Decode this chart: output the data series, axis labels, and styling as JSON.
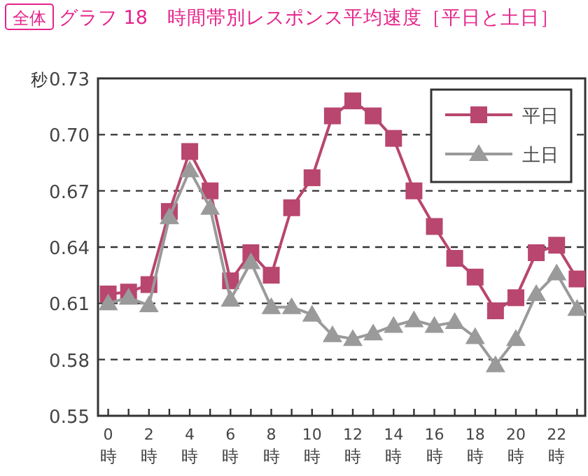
{
  "chart_data": {
    "type": "line",
    "title": "グラフ 18　時間帯別レスポンス平均速度［平日と土日］",
    "annotations": [
      "全体"
    ],
    "ylabel": "秒",
    "x": [
      0,
      1,
      2,
      3,
      4,
      5,
      6,
      7,
      8,
      9,
      10,
      11,
      12,
      13,
      14,
      15,
      16,
      17,
      18,
      19,
      20,
      21,
      22,
      23
    ],
    "series": [
      {
        "name": "平日",
        "color": "#b8466f",
        "marker": "square",
        "values": [
          0.615,
          0.616,
          0.62,
          0.659,
          0.691,
          0.67,
          0.622,
          0.637,
          0.625,
          0.661,
          0.677,
          0.71,
          0.718,
          0.71,
          0.698,
          0.67,
          0.651,
          0.634,
          0.624,
          0.606,
          0.613,
          0.637,
          0.641,
          0.623
        ]
      },
      {
        "name": "土日",
        "color": "#9a9a9a",
        "marker": "triangle",
        "values": [
          0.61,
          0.613,
          0.609,
          0.656,
          0.681,
          0.661,
          0.612,
          0.632,
          0.608,
          0.608,
          0.604,
          0.593,
          0.591,
          0.594,
          0.598,
          0.601,
          0.598,
          0.6,
          0.592,
          0.577,
          0.591,
          0.615,
          0.626,
          0.607
        ]
      }
    ],
    "xlim": [
      -0.5,
      23.4
    ],
    "ylim": [
      0.55,
      0.73
    ],
    "xticks": [
      {
        "value": 0,
        "label": "0時"
      },
      {
        "value": 1,
        "label": null
      },
      {
        "value": 2,
        "label": "2時"
      },
      {
        "value": 3,
        "label": null
      },
      {
        "value": 4,
        "label": "4時"
      },
      {
        "value": 5,
        "label": null
      },
      {
        "value": 6,
        "label": "6時"
      },
      {
        "value": 7,
        "label": null
      },
      {
        "value": 8,
        "label": "8時"
      },
      {
        "value": 9,
        "label": null
      },
      {
        "value": 10,
        "label": "10時"
      },
      {
        "value": 11,
        "label": null
      },
      {
        "value": 12,
        "label": "12時"
      },
      {
        "value": 13,
        "label": null
      },
      {
        "value": 14,
        "label": "14時"
      },
      {
        "value": 15,
        "label": null
      },
      {
        "value": 16,
        "label": "16時"
      },
      {
        "value": 17,
        "label": null
      },
      {
        "value": 18,
        "label": "18時"
      },
      {
        "value": 19,
        "label": null
      },
      {
        "value": 20,
        "label": "20時"
      },
      {
        "value": 21,
        "label": null
      },
      {
        "value": 22,
        "label": "22時"
      },
      {
        "value": 23,
        "label": null
      }
    ],
    "yticks": [
      {
        "value": 0.55,
        "label": "0.55"
      },
      {
        "value": 0.58,
        "label": "0.58"
      },
      {
        "value": 0.61,
        "label": "0.61"
      },
      {
        "value": 0.64,
        "label": "0.64"
      },
      {
        "value": 0.67,
        "label": "0.67"
      },
      {
        "value": 0.7,
        "label": "0.70"
      },
      {
        "value": 0.73,
        "label": "0.73"
      }
    ],
    "grid": "y",
    "line_style": "solid",
    "legend": "top right"
  }
}
